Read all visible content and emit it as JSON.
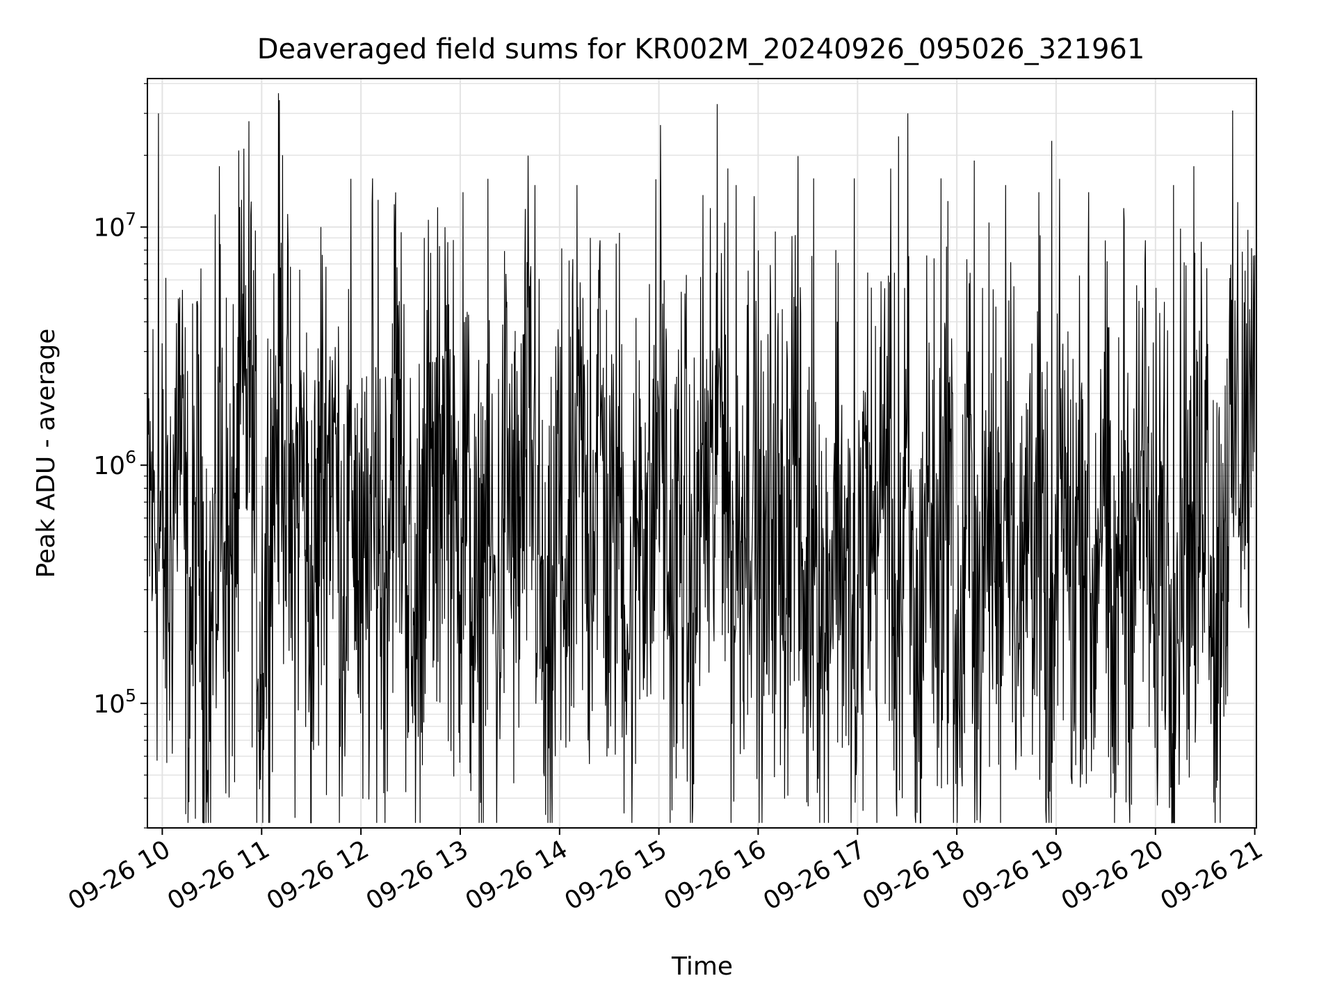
{
  "chart_data": {
    "type": "line",
    "title": "Deaveraged field sums for KR002M_20240926_095026_321961",
    "xlabel": "Time",
    "ylabel": "Peak ADU - average",
    "yscale": "log",
    "ylim": [
      30000,
      42000000
    ],
    "xlim": [
      "2024-09-26 09:51",
      "2024-09-26 21:01"
    ],
    "grid": true,
    "line_color": "#000000",
    "x_ticks": [
      {
        "time": "2024-09-26 10:00",
        "label": "09-26 10"
      },
      {
        "time": "2024-09-26 11:00",
        "label": "09-26 11"
      },
      {
        "time": "2024-09-26 12:00",
        "label": "09-26 12"
      },
      {
        "time": "2024-09-26 13:00",
        "label": "09-26 13"
      },
      {
        "time": "2024-09-26 14:00",
        "label": "09-26 14"
      },
      {
        "time": "2024-09-26 15:00",
        "label": "09-26 15"
      },
      {
        "time": "2024-09-26 16:00",
        "label": "09-26 16"
      },
      {
        "time": "2024-09-26 17:00",
        "label": "09-26 17"
      },
      {
        "time": "2024-09-26 18:00",
        "label": "09-26 18"
      },
      {
        "time": "2024-09-26 19:00",
        "label": "09-26 19"
      },
      {
        "time": "2024-09-26 20:00",
        "label": "09-26 20"
      },
      {
        "time": "2024-09-26 21:00",
        "label": "09-26 21"
      }
    ],
    "y_ticks": [
      {
        "value": 100000,
        "base": "10",
        "exp": "5"
      },
      {
        "value": 1000000,
        "base": "10",
        "exp": "6"
      },
      {
        "value": 10000000,
        "base": "10",
        "exp": "7"
      }
    ],
    "series": [
      {
        "x": [
          "2024-09-26 09:51",
          "2024-09-26 09:57",
          "2024-09-26 10:04",
          "2024-09-26 10:10",
          "2024-09-26 10:16",
          "2024-09-26 10:22",
          "2024-09-26 10:28",
          "2024-09-26 10:35",
          "2024-09-26 10:41",
          "2024-09-26 10:47",
          "2024-09-26 10:53",
          "2024-09-26 10:59",
          "2024-09-26 11:06",
          "2024-09-26 11:12",
          "2024-09-26 11:18",
          "2024-09-26 11:24",
          "2024-09-26 11:30",
          "2024-09-26 11:37",
          "2024-09-26 11:43",
          "2024-09-26 11:49",
          "2024-09-26 11:55",
          "2024-09-26 12:01",
          "2024-09-26 12:08",
          "2024-09-26 12:14",
          "2024-09-26 12:20",
          "2024-09-26 12:26",
          "2024-09-26 12:32",
          "2024-09-26 12:39",
          "2024-09-26 12:45",
          "2024-09-26 12:51",
          "2024-09-26 12:57",
          "2024-09-26 13:03",
          "2024-09-26 13:10",
          "2024-09-26 13:16",
          "2024-09-26 13:22",
          "2024-09-26 13:28",
          "2024-09-26 13:34",
          "2024-09-26 13:41",
          "2024-09-26 13:47",
          "2024-09-26 13:53",
          "2024-09-26 13:59",
          "2024-09-26 14:05",
          "2024-09-26 14:12",
          "2024-09-26 14:18",
          "2024-09-26 14:24",
          "2024-09-26 14:30",
          "2024-09-26 14:36",
          "2024-09-26 14:43",
          "2024-09-26 14:49",
          "2024-09-26 14:55",
          "2024-09-26 15:01",
          "2024-09-26 15:07",
          "2024-09-26 15:14",
          "2024-09-26 15:20",
          "2024-09-26 15:26",
          "2024-09-26 15:32",
          "2024-09-26 15:38",
          "2024-09-26 15:45",
          "2024-09-26 15:51",
          "2024-09-26 15:57",
          "2024-09-26 16:03",
          "2024-09-26 16:09",
          "2024-09-26 16:16",
          "2024-09-26 16:22",
          "2024-09-26 16:28",
          "2024-09-26 16:34",
          "2024-09-26 16:40",
          "2024-09-26 16:47",
          "2024-09-26 16:53",
          "2024-09-26 16:59",
          "2024-09-26 17:05",
          "2024-09-26 17:11",
          "2024-09-26 17:18",
          "2024-09-26 17:24",
          "2024-09-26 17:30",
          "2024-09-26 17:36",
          "2024-09-26 17:42",
          "2024-09-26 17:49",
          "2024-09-26 17:55",
          "2024-09-26 18:01",
          "2024-09-26 18:07",
          "2024-09-26 18:13",
          "2024-09-26 18:20",
          "2024-09-26 18:26",
          "2024-09-26 18:32",
          "2024-09-26 18:38",
          "2024-09-26 18:44",
          "2024-09-26 18:51",
          "2024-09-26 18:57",
          "2024-09-26 19:03",
          "2024-09-26 19:09",
          "2024-09-26 19:15",
          "2024-09-26 19:22",
          "2024-09-26 19:28",
          "2024-09-26 19:34",
          "2024-09-26 19:40",
          "2024-09-26 19:46",
          "2024-09-26 19:53",
          "2024-09-26 19:59",
          "2024-09-26 20:05",
          "2024-09-26 20:11",
          "2024-09-26 20:17",
          "2024-09-26 20:24",
          "2024-09-26 20:30",
          "2024-09-26 20:36",
          "2024-09-26 20:42",
          "2024-09-26 20:48",
          "2024-09-26 20:55",
          "2024-09-26 21:00"
        ],
        "y": [
          700000,
          600000,
          300000,
          2000000,
          180000,
          700000,
          120000,
          900000,
          300000,
          1200000,
          2500000,
          150000,
          800000,
          3000000,
          400000,
          1200000,
          200000,
          900000,
          1500000,
          300000,
          1000000,
          200000,
          700000,
          300000,
          2000000,
          800000,
          120000,
          1200000,
          500000,
          2500000,
          400000,
          900000,
          150000,
          700000,
          200000,
          1100000,
          350000,
          1500000,
          500000,
          60000,
          900000,
          250000,
          1300000,
          400000,
          2000000,
          300000,
          900000,
          150000,
          1000000,
          400000,
          2500000,
          200000,
          800000,
          150000,
          1100000,
          500000,
          3000000,
          250000,
          700000,
          1200000,
          200000,
          900000,
          400000,
          1800000,
          200000,
          800000,
          150000,
          1000000,
          300000,
          120000,
          900000,
          400000,
          1500000,
          200000,
          700000,
          100000,
          900000,
          300000,
          1300000,
          80000,
          1000000,
          200000,
          700000,
          350000,
          1800000,
          150000,
          900000,
          400000,
          60000,
          1200000,
          300000,
          900000,
          200000,
          1500000,
          100000,
          800000,
          350000,
          1200000,
          200000,
          900000,
          150000,
          1000000,
          300000,
          2000000,
          200000,
          700000,
          1500000,
          1300000,
          1600000
        ],
        "spikes": [
          {
            "time": "2024-09-26 09:58",
            "value": 30000000
          },
          {
            "time": "2024-09-26 10:34",
            "value": 18000000
          },
          {
            "time": "2024-09-26 10:48",
            "value": 13000000
          },
          {
            "time": "2024-09-26 11:36",
            "value": 10000000
          },
          {
            "time": "2024-09-26 12:07",
            "value": 16000000
          },
          {
            "time": "2024-09-26 12:08",
            "value": 300000
          },
          {
            "time": "2024-09-26 12:10",
            "value": 13000000
          },
          {
            "time": "2024-09-26 12:38",
            "value": 9000000
          },
          {
            "time": "2024-09-26 13:02",
            "value": 14000000
          },
          {
            "time": "2024-09-26 13:45",
            "value": 15000000
          },
          {
            "time": "2024-09-26 14:19",
            "value": 9000000
          },
          {
            "time": "2024-09-26 15:31",
            "value": 12000000
          },
          {
            "time": "2024-09-26 15:47",
            "value": 15000000
          },
          {
            "time": "2024-09-26 16:34",
            "value": 16000000
          },
          {
            "time": "2024-09-26 16:58",
            "value": 16000000
          },
          {
            "time": "2024-09-26 17:12",
            "value": 25000000
          },
          {
            "time": "2024-09-26 17:25",
            "value": 24000000
          },
          {
            "time": "2024-09-26 17:30",
            "value": 30000000
          },
          {
            "time": "2024-09-26 17:50",
            "value": 16000000
          },
          {
            "time": "2024-09-26 18:11",
            "value": 19000000
          },
          {
            "time": "2024-09-26 18:29",
            "value": 15000000
          },
          {
            "time": "2024-09-26 18:50",
            "value": 14000000
          },
          {
            "time": "2024-09-26 18:57",
            "value": 23000000
          },
          {
            "time": "2024-09-26 19:20",
            "value": 14000000
          },
          {
            "time": "2024-09-26 19:41",
            "value": 12000000
          },
          {
            "time": "2024-09-26 20:11",
            "value": 15000000
          },
          {
            "time": "2024-09-26 20:23",
            "value": 18000000
          },
          {
            "time": "2024-09-26 13:57",
            "value": 60000
          },
          {
            "time": "2024-09-26 14:01",
            "value": 70000
          },
          {
            "time": "2024-09-26 10:42",
            "value": 60000
          },
          {
            "time": "2024-09-26 12:37",
            "value": 55000
          },
          {
            "time": "2024-09-26 16:13",
            "value": 55000
          },
          {
            "time": "2024-09-26 16:59",
            "value": 50000
          },
          {
            "time": "2024-09-26 17:27",
            "value": 40000
          },
          {
            "time": "2024-09-26 17:48",
            "value": 45000
          },
          {
            "time": "2024-09-26 18:55",
            "value": 40000
          },
          {
            "time": "2024-09-26 19:12",
            "value": 55000
          },
          {
            "time": "2024-09-26 19:37",
            "value": 55000
          },
          {
            "time": "2024-09-26 20:00",
            "value": 65000
          }
        ]
      }
    ]
  }
}
